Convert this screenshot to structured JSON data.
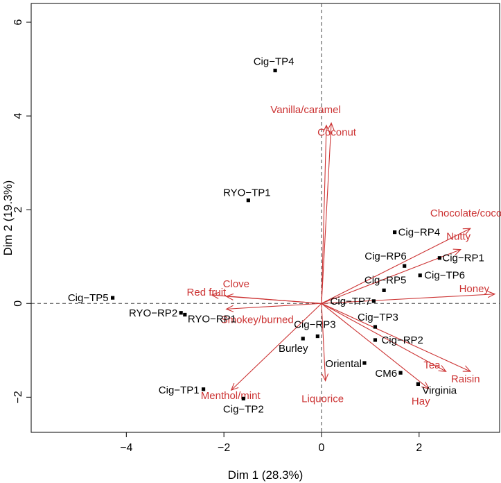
{
  "chart_data": {
    "type": "scatter",
    "subtype": "biplot",
    "title": "",
    "xlabel": "Dim 1 (28.3%)",
    "ylabel": "Dim 2 (19.3%)",
    "xlim": [
      -5.95,
      3.65
    ],
    "ylim": [
      -2.75,
      6.4
    ],
    "xticks": [
      -4,
      -2,
      0,
      2
    ],
    "yticks": [
      -2,
      0,
      2,
      4,
      6
    ],
    "reference_lines": {
      "x": 0,
      "y": 0,
      "style": "dashed"
    },
    "colors": {
      "points": "#000000",
      "arrows": "#cc3333",
      "axes": "#000000",
      "reference": "#444444"
    },
    "points": [
      {
        "label": "Cig−TP4",
        "x": -0.95,
        "y": 4.97
      },
      {
        "label": "RYO−TP1",
        "x": -1.5,
        "y": 2.2
      },
      {
        "label": "Cig−TP5",
        "x": -4.28,
        "y": 0.12
      },
      {
        "label": "RYO−RP2",
        "x": -2.88,
        "y": -0.2
      },
      {
        "label": "RYO−RP1",
        "x": -2.8,
        "y": -0.24
      },
      {
        "label": "Cig−TP1",
        "x": -2.42,
        "y": -1.83
      },
      {
        "label": "Cig−TP2",
        "x": -1.6,
        "y": -2.03
      },
      {
        "label": "Cig−RP3",
        "x": -0.08,
        "y": -0.7
      },
      {
        "label": "Burley",
        "x": -0.38,
        "y": -0.75
      },
      {
        "label": "Cig−TP7",
        "x": 1.07,
        "y": 0.05
      },
      {
        "label": "Cig−TP3",
        "x": 1.1,
        "y": -0.5
      },
      {
        "label": "Cig−RP2",
        "x": 1.1,
        "y": -0.78
      },
      {
        "label": "Oriental",
        "x": 0.88,
        "y": -1.27
      },
      {
        "label": "CM6",
        "x": 1.62,
        "y": -1.48
      },
      {
        "label": "Virginia",
        "x": 1.98,
        "y": -1.72
      },
      {
        "label": "Cig−RP4",
        "x": 1.5,
        "y": 1.52
      },
      {
        "label": "Cig−RP6",
        "x": 1.7,
        "y": 0.8
      },
      {
        "label": "Cig−RP1",
        "x": 2.42,
        "y": 0.97
      },
      {
        "label": "Cig−TP6",
        "x": 2.02,
        "y": 0.6
      },
      {
        "label": "Cig−RP5",
        "x": 1.28,
        "y": 0.28
      }
    ],
    "arrows": [
      {
        "label": "Vanilla/caramel",
        "x": 0.2,
        "y": 3.85
      },
      {
        "label": "Coconut",
        "x": 0.1,
        "y": 3.8
      },
      {
        "label": "Chocolate/cocoa",
        "x": 3.05,
        "y": 1.6
      },
      {
        "label": "Nutty",
        "x": 2.85,
        "y": 1.15
      },
      {
        "label": "Honey",
        "x": 3.55,
        "y": 0.2
      },
      {
        "label": "Tea",
        "x": 2.55,
        "y": -1.45
      },
      {
        "label": "Raisin",
        "x": 3.05,
        "y": -1.45
      },
      {
        "label": "Hay",
        "x": 2.2,
        "y": -1.82
      },
      {
        "label": "Liquorice",
        "x": 0.08,
        "y": -1.65
      },
      {
        "label": "Menthol/mint",
        "x": -1.85,
        "y": -1.85
      },
      {
        "label": "Red fruit",
        "x": -2.25,
        "y": 0.18
      },
      {
        "label": "Clove",
        "x": -1.95,
        "y": 0.15
      },
      {
        "label": "Smokey/burned",
        "x": -1.95,
        "y": -0.12
      }
    ]
  }
}
